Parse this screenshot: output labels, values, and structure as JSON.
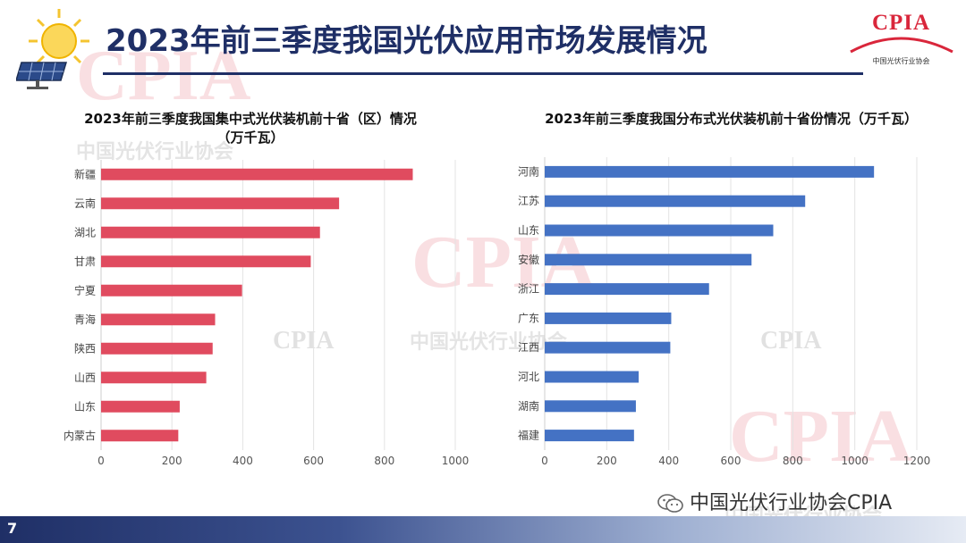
{
  "header": {
    "title": "2023年前三季度我国光伏应用市场发展情况",
    "logo_text": "CPIA",
    "logo_subtitle": "中国光伏行业协会",
    "icon": "solar-panel-sun-icon"
  },
  "watermark": {
    "logo_text": "CPIA",
    "org_name": "中国光伏行业协会"
  },
  "footer": {
    "page_number": "7",
    "wechat_account": "中国光伏行业协会CPIA"
  },
  "colors": {
    "primary": "#1f2f66",
    "red_series": "#e04b5f",
    "blue_series": "#4472c4",
    "brand_red": "#d9263b"
  },
  "chart_data": [
    {
      "type": "bar",
      "orientation": "horizontal",
      "title_line1": "2023年前三季度我国集中式光伏装机前十省（区）情况",
      "title_line2": "（万千瓦）",
      "categories": [
        "新疆",
        "云南",
        "湖北",
        "甘肃",
        "宁夏",
        "青海",
        "陕西",
        "山西",
        "山东",
        "内蒙古"
      ],
      "values": [
        880,
        672,
        618,
        592,
        398,
        322,
        315,
        297,
        222,
        218
      ],
      "xlim": [
        0,
        1000
      ],
      "xticks": [
        0,
        200,
        400,
        600,
        800,
        1000
      ],
      "grid": true,
      "color": "#e04b5f"
    },
    {
      "type": "bar",
      "orientation": "horizontal",
      "title_line1": "2023年前三季度我国分布式光伏装机前十省份情况（万千瓦）",
      "title_line2": "",
      "categories": [
        "河南",
        "江苏",
        "山东",
        "安徽",
        "浙江",
        "广东",
        "江西",
        "河北",
        "湖南",
        "福建"
      ],
      "values": [
        1062,
        840,
        737,
        667,
        530,
        408,
        405,
        303,
        294,
        288
      ],
      "xlim": [
        0,
        1200
      ],
      "xticks": [
        0,
        200,
        400,
        600,
        800,
        1000,
        1200
      ],
      "grid": true,
      "color": "#4472c4"
    }
  ]
}
